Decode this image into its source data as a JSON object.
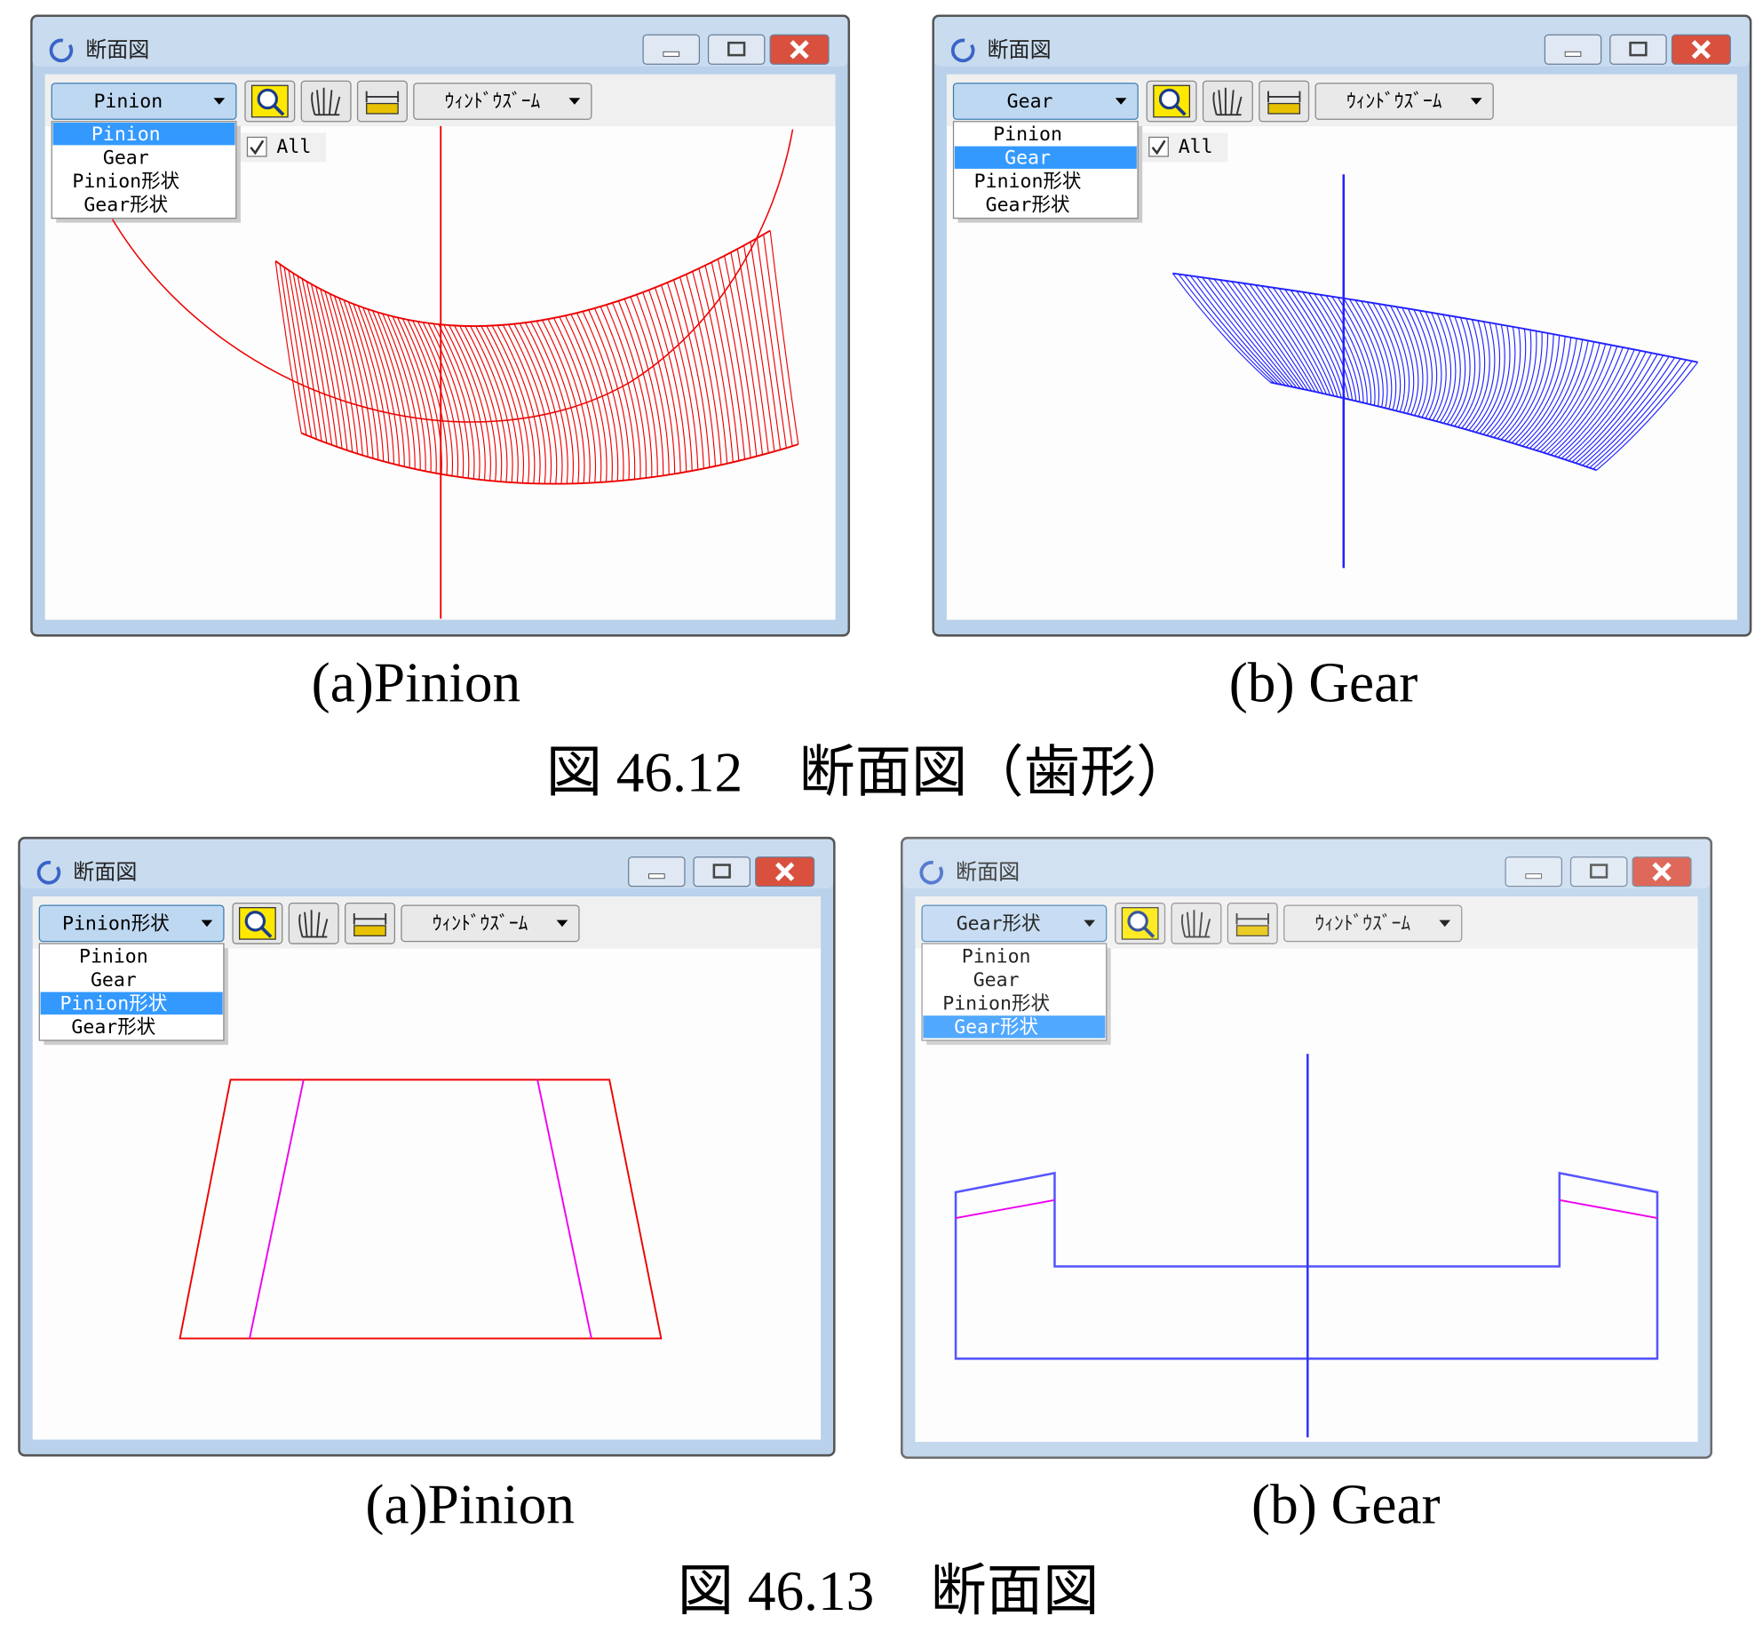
{
  "figures": [
    {
      "caption": "図 46.12　断面図（歯形）",
      "panels": [
        {
          "window_title": "断面図",
          "selected": "Pinion",
          "dropdown": [
            "Pinion",
            "Gear",
            "Pinion形状",
            "Gear形状"
          ],
          "highlighted": 0,
          "zoom_mode": "ｳｨﾝﾄﾞｳｽﾞｰﾑ",
          "checkbox": "All",
          "checked": true,
          "caption": "(a)Pinion"
        },
        {
          "window_title": "断面図",
          "selected": "Gear",
          "dropdown": [
            "Pinion",
            "Gear",
            "Pinion形状",
            "Gear形状"
          ],
          "highlighted": 1,
          "zoom_mode": "ｳｨﾝﾄﾞｳｽﾞｰﾑ",
          "checkbox": "All",
          "checked": true,
          "caption": "(b) Gear"
        }
      ]
    },
    {
      "caption": "図 46.13　断面図",
      "panels": [
        {
          "window_title": "断面図",
          "selected": "Pinion形状",
          "dropdown": [
            "Pinion",
            "Gear",
            "Pinion形状",
            "Gear形状"
          ],
          "highlighted": 2,
          "zoom_mode": "ｳｨﾝﾄﾞｳｽﾞｰﾑ",
          "caption": "(a)Pinion"
        },
        {
          "window_title": "断面図",
          "selected": "Gear形状",
          "dropdown": [
            "Pinion",
            "Gear",
            "Pinion形状",
            "Gear形状"
          ],
          "highlighted": 3,
          "zoom_mode": "ｳｨﾝﾄﾞｳｽﾞｰﾑ",
          "caption": "(b) Gear"
        }
      ]
    }
  ]
}
